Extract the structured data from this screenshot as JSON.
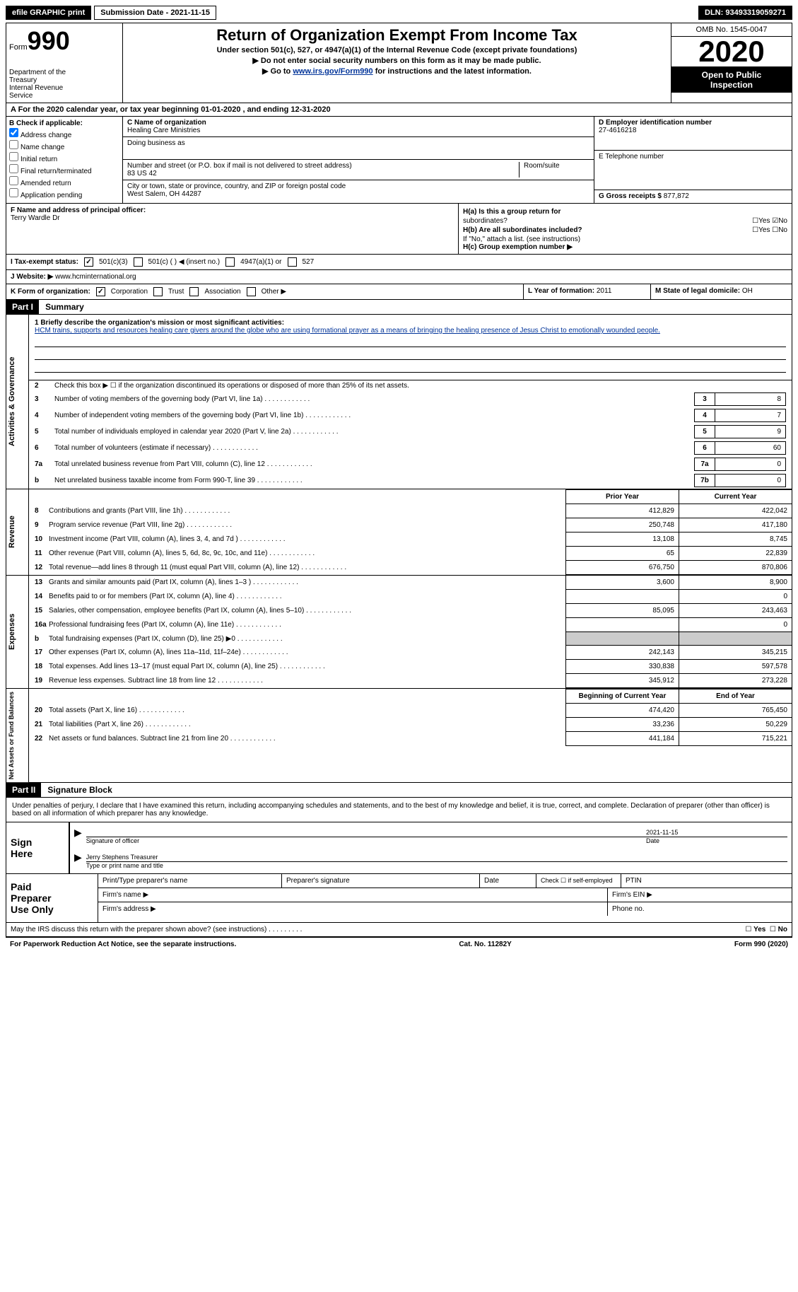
{
  "topbar": {
    "efile": "efile GRAPHIC print",
    "submission": "Submission Date - 2021-11-15",
    "dln_label": "DLN:",
    "dln": "93493319059271"
  },
  "header": {
    "form_label": "Form",
    "form_num": "990",
    "dept1": "Department of the",
    "dept2": "Treasury",
    "dept3": "Internal Revenue",
    "dept4": "Service",
    "title": "Return of Organization Exempt From Income Tax",
    "sub1": "Under section 501(c), 527, or 4947(a)(1) of the Internal Revenue Code (except private foundations)",
    "sub2": "▶ Do not enter social security numbers on this form as it may be made public.",
    "sub3_pre": "▶ Go to ",
    "sub3_link": "www.irs.gov/Form990",
    "sub3_post": " for instructions and the latest information.",
    "omb": "OMB No. 1545-0047",
    "year": "2020",
    "inspect1": "Open to Public",
    "inspect2": "Inspection"
  },
  "row_a": "A   For the 2020 calendar year, or tax year beginning 01-01-2020    , and ending 12-31-2020",
  "section_b": {
    "label": "B Check if applicable:",
    "opts": [
      "Address change",
      "Name change",
      "Initial return",
      "Final return/terminated",
      "Amended return",
      "Application pending"
    ],
    "checked_idx": 0
  },
  "section_c": {
    "name_label": "C Name of organization",
    "name": "Healing Care Ministries",
    "dba_label": "Doing business as",
    "addr_label": "Number and street (or P.O. box if mail is not delivered to street address)",
    "room_label": "Room/suite",
    "addr": "83 US 42",
    "city_label": "City or town, state or province, country, and ZIP or foreign postal code",
    "city": "West Salem, OH   44287"
  },
  "section_d": {
    "label": "D Employer identification number",
    "ein": "27-4616218",
    "tel_label": "E Telephone number",
    "gross_label": "G Gross receipts $",
    "gross": "877,872"
  },
  "section_f": {
    "label": "F  Name and address of principal officer:",
    "name": "Terry Wardle Dr"
  },
  "section_h": {
    "a_label": "H(a)  Is this a group return for",
    "a_sub": "subordinates?",
    "b_label": "H(b)  Are all subordinates included?",
    "b_note": "If \"No,\" attach a list. (see instructions)",
    "c_label": "H(c)  Group exemption number ▶",
    "yes": "Yes",
    "no": "No"
  },
  "row_i": {
    "label": "I    Tax-exempt status:",
    "o1": "501(c)(3)",
    "o2": "501(c) (  ) ◀ (insert no.)",
    "o3": "4947(a)(1) or",
    "o4": "527"
  },
  "row_j": {
    "label": "J    Website: ▶",
    "val": "www.hcminternational.org"
  },
  "row_k": {
    "label": "K Form of organization:",
    "o1": "Corporation",
    "o2": "Trust",
    "o3": "Association",
    "o4": "Other ▶",
    "l_label": "L Year of formation:",
    "l_val": "2011",
    "m_label": "M State of legal domicile:",
    "m_val": "OH"
  },
  "part1": {
    "hdr": "Part I",
    "title": "Summary"
  },
  "mission": {
    "label": "1  Briefly describe the organization's mission or most significant activities:",
    "text": "HCM trains, supports and resources healing care givers around the globe who are using formational prayer as a means of bringing the healing presence of Jesus Christ to emotionally wounded people."
  },
  "vlabels": {
    "gov": "Activities & Governance",
    "rev": "Revenue",
    "exp": "Expenses",
    "net": "Net Assets or Fund Balances"
  },
  "gov_lines": [
    {
      "n": "2",
      "t": "Check this box ▶ ☐  if the organization discontinued its operations or disposed of more than 25% of its net assets.",
      "b": "",
      "v": ""
    },
    {
      "n": "3",
      "t": "Number of voting members of the governing body (Part VI, line 1a)",
      "b": "3",
      "v": "8"
    },
    {
      "n": "4",
      "t": "Number of independent voting members of the governing body (Part VI, line 1b)",
      "b": "4",
      "v": "7"
    },
    {
      "n": "5",
      "t": "Total number of individuals employed in calendar year 2020 (Part V, line 2a)",
      "b": "5",
      "v": "9"
    },
    {
      "n": "6",
      "t": "Total number of volunteers (estimate if necessary)",
      "b": "6",
      "v": "60"
    },
    {
      "n": "7a",
      "t": "Total unrelated business revenue from Part VIII, column (C), line 12",
      "b": "7a",
      "v": "0"
    },
    {
      "n": "b",
      "t": "Net unrelated business taxable income from Form 990-T, line 39",
      "b": "7b",
      "v": "0"
    }
  ],
  "fin_hdr": {
    "prior": "Prior Year",
    "curr": "Current Year"
  },
  "rev_lines": [
    {
      "n": "8",
      "t": "Contributions and grants (Part VIII, line 1h)",
      "p": "412,829",
      "c": "422,042"
    },
    {
      "n": "9",
      "t": "Program service revenue (Part VIII, line 2g)",
      "p": "250,748",
      "c": "417,180"
    },
    {
      "n": "10",
      "t": "Investment income (Part VIII, column (A), lines 3, 4, and 7d )",
      "p": "13,108",
      "c": "8,745"
    },
    {
      "n": "11",
      "t": "Other revenue (Part VIII, column (A), lines 5, 6d, 8c, 9c, 10c, and 11e)",
      "p": "65",
      "c": "22,839"
    },
    {
      "n": "12",
      "t": "Total revenue—add lines 8 through 11 (must equal Part VIII, column (A), line 12)",
      "p": "676,750",
      "c": "870,806"
    }
  ],
  "exp_lines": [
    {
      "n": "13",
      "t": "Grants and similar amounts paid (Part IX, column (A), lines 1–3 )",
      "p": "3,600",
      "c": "8,900"
    },
    {
      "n": "14",
      "t": "Benefits paid to or for members (Part IX, column (A), line 4)",
      "p": "",
      "c": "0"
    },
    {
      "n": "15",
      "t": "Salaries, other compensation, employee benefits (Part IX, column (A), lines 5–10)",
      "p": "85,095",
      "c": "243,463"
    },
    {
      "n": "16a",
      "t": "Professional fundraising fees (Part IX, column (A), line 11e)",
      "p": "",
      "c": "0"
    },
    {
      "n": "b",
      "t": "Total fundraising expenses (Part IX, column (D), line 25) ▶0",
      "p": "grey",
      "c": "grey"
    },
    {
      "n": "17",
      "t": "Other expenses (Part IX, column (A), lines 11a–11d, 11f–24e)",
      "p": "242,143",
      "c": "345,215"
    },
    {
      "n": "18",
      "t": "Total expenses. Add lines 13–17 (must equal Part IX, column (A), line 25)",
      "p": "330,838",
      "c": "597,578"
    },
    {
      "n": "19",
      "t": "Revenue less expenses. Subtract line 18 from line 12",
      "p": "345,912",
      "c": "273,228"
    }
  ],
  "net_hdr": {
    "prior": "Beginning of Current Year",
    "curr": "End of Year"
  },
  "net_lines": [
    {
      "n": "20",
      "t": "Total assets (Part X, line 16)",
      "p": "474,420",
      "c": "765,450"
    },
    {
      "n": "21",
      "t": "Total liabilities (Part X, line 26)",
      "p": "33,236",
      "c": "50,229"
    },
    {
      "n": "22",
      "t": "Net assets or fund balances. Subtract line 21 from line 20",
      "p": "441,184",
      "c": "715,221"
    }
  ],
  "part2": {
    "hdr": "Part II",
    "title": "Signature Block"
  },
  "penalties": "Under penalties of perjury, I declare that I have examined this return, including accompanying schedules and statements, and to the best of my knowledge and belief, it is true, correct, and complete. Declaration of preparer (other than officer) is based on all information of which preparer has any knowledge.",
  "sign": {
    "label1": "Sign",
    "label2": "Here",
    "sig_label": "Signature of officer",
    "date_label": "Date",
    "date": "2021-11-15",
    "name": "Jerry Stephens Treasurer",
    "name_label": "Type or print name and title"
  },
  "prep": {
    "label1": "Paid",
    "label2": "Preparer",
    "label3": "Use Only",
    "c1": "Print/Type preparer's name",
    "c2": "Preparer's signature",
    "c3": "Date",
    "c4": "Check ☐ if self-employed",
    "c5": "PTIN",
    "firm_name": "Firm's name   ▶",
    "firm_ein": "Firm's EIN ▶",
    "firm_addr": "Firm's address ▶",
    "phone": "Phone no."
  },
  "footer": {
    "may": "May the IRS discuss this return with the preparer shown above? (see instructions)",
    "paperwork": "For Paperwork Reduction Act Notice, see the separate instructions.",
    "cat": "Cat. No. 11282Y",
    "form": "Form 990 (2020)"
  }
}
